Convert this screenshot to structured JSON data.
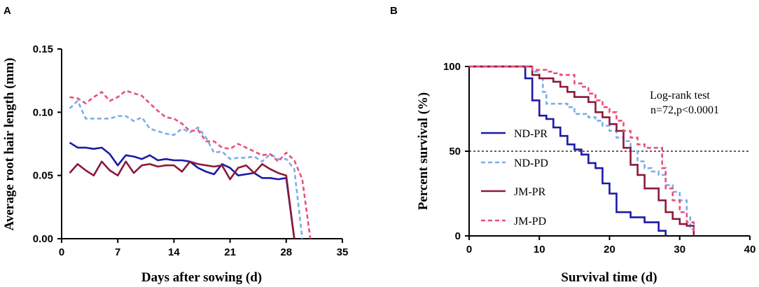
{
  "chart_data": [
    {
      "panel": "A",
      "type": "line",
      "xlabel": "Days after sowing (d)",
      "ylabel": "Average root  hair length (mm)",
      "xlim": [
        0,
        35
      ],
      "ylim": [
        0,
        0.15
      ],
      "xticks": [
        "0",
        "7",
        "14",
        "21",
        "28",
        "35"
      ],
      "xtick_values": [
        0,
        7,
        14,
        21,
        28,
        35
      ],
      "yticks": [
        "0.00",
        "0.05",
        "0.10",
        "0.15"
      ],
      "ytick_values": [
        0,
        0.05,
        0.1,
        0.15
      ],
      "series": [
        {
          "name": "ND-PR",
          "color": "#1a1aa8",
          "dash": "solid",
          "points": [
            [
              1,
              0.076
            ],
            [
              2,
              0.072
            ],
            [
              3,
              0.072
            ],
            [
              4,
              0.071
            ],
            [
              5,
              0.072
            ],
            [
              6,
              0.067
            ],
            [
              7,
              0.058
            ],
            [
              8,
              0.066
            ],
            [
              9,
              0.065
            ],
            [
              10,
              0.063
            ],
            [
              11,
              0.066
            ],
            [
              12,
              0.062
            ],
            [
              13,
              0.063
            ],
            [
              14,
              0.062
            ],
            [
              15,
              0.062
            ],
            [
              16,
              0.061
            ],
            [
              17,
              0.056
            ],
            [
              18,
              0.053
            ],
            [
              19,
              0.051
            ],
            [
              20,
              0.059
            ],
            [
              21,
              0.056
            ],
            [
              22,
              0.05
            ],
            [
              23,
              0.051
            ],
            [
              24,
              0.052
            ],
            [
              25,
              0.048
            ],
            [
              26,
              0.048
            ],
            [
              27,
              0.047
            ],
            [
              28,
              0.048
            ],
            [
              29,
              0.0
            ]
          ]
        },
        {
          "name": "JM-PR",
          "color": "#8b1a3a",
          "dash": "solid",
          "points": [
            [
              1,
              0.052
            ],
            [
              2,
              0.059
            ],
            [
              3,
              0.054
            ],
            [
              4,
              0.05
            ],
            [
              5,
              0.061
            ],
            [
              6,
              0.054
            ],
            [
              7,
              0.05
            ],
            [
              8,
              0.061
            ],
            [
              9,
              0.052
            ],
            [
              10,
              0.058
            ],
            [
              11,
              0.059
            ],
            [
              12,
              0.057
            ],
            [
              13,
              0.058
            ],
            [
              14,
              0.058
            ],
            [
              15,
              0.053
            ],
            [
              16,
              0.061
            ],
            [
              17,
              0.059
            ],
            [
              18,
              0.058
            ],
            [
              19,
              0.057
            ],
            [
              20,
              0.058
            ],
            [
              21,
              0.047
            ],
            [
              22,
              0.056
            ],
            [
              23,
              0.058
            ],
            [
              24,
              0.052
            ],
            [
              25,
              0.059
            ],
            [
              26,
              0.055
            ],
            [
              27,
              0.052
            ],
            [
              28,
              0.05
            ],
            [
              29,
              0.0
            ]
          ]
        },
        {
          "name": "ND-PD",
          "color": "#7aaee8",
          "dash": "dashed",
          "points": [
            [
              1,
              0.103
            ],
            [
              2,
              0.109
            ],
            [
              3,
              0.095
            ],
            [
              4,
              0.095
            ],
            [
              5,
              0.095
            ],
            [
              6,
              0.095
            ],
            [
              7,
              0.097
            ],
            [
              8,
              0.097
            ],
            [
              9,
              0.093
            ],
            [
              10,
              0.096
            ],
            [
              11,
              0.087
            ],
            [
              12,
              0.085
            ],
            [
              13,
              0.083
            ],
            [
              14,
              0.082
            ],
            [
              15,
              0.087
            ],
            [
              16,
              0.084
            ],
            [
              17,
              0.088
            ],
            [
              18,
              0.08
            ],
            [
              19,
              0.068
            ],
            [
              20,
              0.069
            ],
            [
              21,
              0.063
            ],
            [
              22,
              0.064
            ],
            [
              23,
              0.064
            ],
            [
              24,
              0.065
            ],
            [
              25,
              0.061
            ],
            [
              26,
              0.067
            ],
            [
              27,
              0.063
            ],
            [
              28,
              0.063
            ],
            [
              29,
              0.055
            ],
            [
              30,
              0.0
            ]
          ]
        },
        {
          "name": "JM-PD",
          "color": "#e8507a",
          "dash": "dashed",
          "points": [
            [
              1,
              0.112
            ],
            [
              2,
              0.111
            ],
            [
              3,
              0.107
            ],
            [
              4,
              0.112
            ],
            [
              5,
              0.116
            ],
            [
              6,
              0.109
            ],
            [
              7,
              0.112
            ],
            [
              8,
              0.117
            ],
            [
              9,
              0.115
            ],
            [
              10,
              0.113
            ],
            [
              11,
              0.107
            ],
            [
              12,
              0.101
            ],
            [
              13,
              0.096
            ],
            [
              14,
              0.095
            ],
            [
              15,
              0.091
            ],
            [
              16,
              0.085
            ],
            [
              17,
              0.086
            ],
            [
              18,
              0.077
            ],
            [
              19,
              0.077
            ],
            [
              20,
              0.072
            ],
            [
              21,
              0.071
            ],
            [
              22,
              0.075
            ],
            [
              23,
              0.072
            ],
            [
              24,
              0.069
            ],
            [
              25,
              0.066
            ],
            [
              26,
              0.067
            ],
            [
              27,
              0.061
            ],
            [
              28,
              0.068
            ],
            [
              29,
              0.062
            ],
            [
              30,
              0.047
            ],
            [
              31,
              0.0
            ]
          ]
        }
      ]
    },
    {
      "panel": "B",
      "type": "line",
      "subtype": "kaplan-meier",
      "xlabel": "Survival time (d)",
      "ylabel": "Percent survival (%)",
      "xlim": [
        0,
        40
      ],
      "ylim": [
        0,
        100
      ],
      "xticks": [
        "0",
        "10",
        "20",
        "30",
        "40"
      ],
      "xtick_values": [
        0,
        10,
        20,
        30,
        40
      ],
      "yticks": [
        "0",
        "50",
        "100"
      ],
      "ytick_values": [
        0,
        50,
        100
      ],
      "reference_line": 50,
      "annotation": [
        "Log-rank test",
        "n=72,p<0.0001"
      ],
      "legend": [
        "ND-PR",
        "ND-PD",
        "JM-PR",
        "JM-PD"
      ],
      "series": [
        {
          "name": "ND-PR",
          "color": "#1a1aa8",
          "dash": "solid",
          "steps": [
            [
              0,
              100
            ],
            [
              7,
              100
            ],
            [
              8,
              93
            ],
            [
              9,
              80
            ],
            [
              10,
              71
            ],
            [
              11,
              69
            ],
            [
              12,
              64
            ],
            [
              13,
              59
            ],
            [
              14,
              54
            ],
            [
              15,
              51
            ],
            [
              16,
              48
            ],
            [
              17,
              43
            ],
            [
              18,
              40
            ],
            [
              19,
              31
            ],
            [
              20,
              25
            ],
            [
              21,
              14
            ],
            [
              23,
              11
            ],
            [
              24,
              11
            ],
            [
              25,
              8
            ],
            [
              27,
              3
            ],
            [
              28,
              0
            ]
          ]
        },
        {
          "name": "ND-PD",
          "color": "#7aaee8",
          "dash": "dashed",
          "steps": [
            [
              0,
              100
            ],
            [
              8,
              100
            ],
            [
              9,
              97
            ],
            [
              10,
              93
            ],
            [
              10.5,
              85
            ],
            [
              11,
              78
            ],
            [
              13,
              78
            ],
            [
              14,
              76
            ],
            [
              15,
              72
            ],
            [
              17,
              70
            ],
            [
              18,
              68
            ],
            [
              19,
              65
            ],
            [
              20,
              62
            ],
            [
              21,
              58
            ],
            [
              22,
              56
            ],
            [
              23,
              50
            ],
            [
              24,
              44
            ],
            [
              25,
              40
            ],
            [
              26,
              38
            ],
            [
              27,
              36
            ],
            [
              28,
              30
            ],
            [
              29,
              26
            ],
            [
              30,
              21
            ],
            [
              31,
              11
            ],
            [
              31.5,
              4
            ],
            [
              32,
              0
            ]
          ]
        },
        {
          "name": "JM-PR",
          "color": "#8b1a3a",
          "dash": "solid",
          "steps": [
            [
              0,
              100
            ],
            [
              8,
              100
            ],
            [
              9,
              95
            ],
            [
              10,
              93
            ],
            [
              12,
              91
            ],
            [
              13,
              88
            ],
            [
              14,
              85
            ],
            [
              15,
              82
            ],
            [
              17,
              79
            ],
            [
              18,
              73
            ],
            [
              19,
              70
            ],
            [
              20,
              66
            ],
            [
              21,
              62
            ],
            [
              22,
              52
            ],
            [
              23,
              42
            ],
            [
              24,
              36
            ],
            [
              25,
              28
            ],
            [
              27,
              21
            ],
            [
              28,
              14
            ],
            [
              29,
              10
            ],
            [
              30,
              7
            ],
            [
              31,
              6
            ],
            [
              32,
              0
            ]
          ]
        },
        {
          "name": "JM-PD",
          "color": "#e8507a",
          "dash": "dashed",
          "steps": [
            [
              0,
              100
            ],
            [
              7,
              100
            ],
            [
              9,
              98
            ],
            [
              11,
              97
            ],
            [
              12,
              96
            ],
            [
              13,
              95
            ],
            [
              15,
              90
            ],
            [
              16,
              88
            ],
            [
              17,
              84
            ],
            [
              18,
              80
            ],
            [
              19,
              76
            ],
            [
              20,
              73
            ],
            [
              21,
              68
            ],
            [
              22,
              62
            ],
            [
              23,
              58
            ],
            [
              24,
              54
            ],
            [
              25,
              52
            ],
            [
              27,
              52
            ],
            [
              27.5,
              40
            ],
            [
              28,
              28
            ],
            [
              29,
              21
            ],
            [
              30,
              14
            ],
            [
              31,
              8
            ],
            [
              32,
              1
            ]
          ]
        }
      ]
    }
  ]
}
